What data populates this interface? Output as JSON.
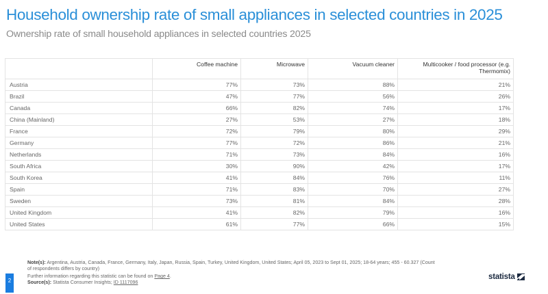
{
  "header": {
    "title": "Household ownership rate of small appliances in selected countries in 2025",
    "subtitle": "Ownership rate of small household appliances in selected countries 2025"
  },
  "table": {
    "columns": [
      "",
      "Coffee machine",
      "Microwave",
      "Vacuum cleaner",
      "Multicooker / food processor (e.g. Thermomix)"
    ],
    "columns_display": [
      "",
      "Coffee machine",
      "Microwave",
      "Vacuum cleaner",
      "Multicooker / food processor (e.g.",
      "Thermomix)"
    ],
    "rows": [
      {
        "country": "Austria",
        "values": [
          "77%",
          "73%",
          "88%",
          "21%"
        ]
      },
      {
        "country": "Brazil",
        "values": [
          "47%",
          "77%",
          "56%",
          "26%"
        ]
      },
      {
        "country": "Canada",
        "values": [
          "66%",
          "82%",
          "74%",
          "17%"
        ]
      },
      {
        "country": "China (Mainland)",
        "values": [
          "27%",
          "53%",
          "27%",
          "18%"
        ]
      },
      {
        "country": "France",
        "values": [
          "72%",
          "79%",
          "80%",
          "29%"
        ]
      },
      {
        "country": "Germany",
        "values": [
          "77%",
          "72%",
          "86%",
          "21%"
        ]
      },
      {
        "country": "Netherlands",
        "values": [
          "71%",
          "73%",
          "84%",
          "16%"
        ]
      },
      {
        "country": "South Africa",
        "values": [
          "30%",
          "90%",
          "42%",
          "17%"
        ]
      },
      {
        "country": "South Korea",
        "values": [
          "41%",
          "84%",
          "76%",
          "11%"
        ]
      },
      {
        "country": "Spain",
        "values": [
          "71%",
          "83%",
          "70%",
          "27%"
        ]
      },
      {
        "country": "Sweden",
        "values": [
          "73%",
          "81%",
          "84%",
          "28%"
        ]
      },
      {
        "country": "United Kingdom",
        "values": [
          "41%",
          "82%",
          "79%",
          "16%"
        ]
      },
      {
        "country": "United States",
        "values": [
          "61%",
          "77%",
          "66%",
          "15%"
        ]
      }
    ]
  },
  "footer": {
    "note_label": "Note(s):",
    "note_text": "Argentina, Austria, Canada, France, Germany, Italy, Japan, Russia, Spain, Turkey, United Kingdom, United States; April  05, 2023 to Sept 01, 2025; 18-64 years; 455 - 60.327 (Count of respondents differs by country)",
    "further_info": "Further information regarding this statistic can be found on ",
    "further_link": "Page 4",
    "further_end": ".",
    "source_label": "Source(s):",
    "source_text": "Statista Consumer Insights; ",
    "source_link": "ID 1117096",
    "page_number": "2",
    "logo_text": "statista"
  },
  "colors": {
    "title": "#2a8fd8",
    "page_badge": "#1a7de0",
    "logo": "#1c2a40"
  }
}
